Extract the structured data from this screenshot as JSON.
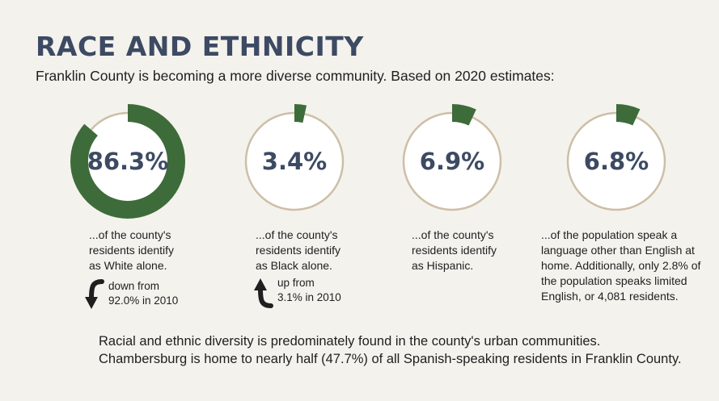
{
  "header": {
    "title": "RACE AND ETHNICITY",
    "subtitle": "Franklin County is becoming a more diverse community. Based on 2020 estimates:"
  },
  "colors": {
    "accent": "#3e6b3a",
    "ring": "#cdbfa6",
    "title": "#3d4a63"
  },
  "stats": [
    {
      "value": 86.3,
      "label": "86.3%",
      "desc_lines": [
        "...of the county's",
        "residents identify",
        "as White alone."
      ],
      "trend": {
        "direction": "down",
        "icon": "arrow-down-icon",
        "lines": [
          "down from",
          "92.0% in 2010"
        ]
      }
    },
    {
      "value": 3.4,
      "label": "3.4%",
      "desc_lines": [
        "...of the county's",
        "residents identify",
        "as Black alone."
      ],
      "trend": {
        "direction": "up",
        "icon": "arrow-up-icon",
        "lines": [
          "up from",
          "3.1% in 2010"
        ]
      }
    },
    {
      "value": 6.9,
      "label": "6.9%",
      "desc_lines": [
        "...of the county's",
        "residents identify",
        "as Hispanic."
      ]
    },
    {
      "value": 6.8,
      "label": "6.8%",
      "desc_lines": [
        "...of the population speak a",
        "language other than English at",
        "home. Additionally, only 2.8% of",
        "the population speaks limited",
        "English, or 4,081 residents."
      ]
    }
  ],
  "footer": {
    "lines": [
      "Racial and ethnic diversity is predominately found in the county's urban communities.",
      "Chambersburg is home to nearly half (47.7%) of all Spanish-speaking residents in Franklin County."
    ]
  }
}
